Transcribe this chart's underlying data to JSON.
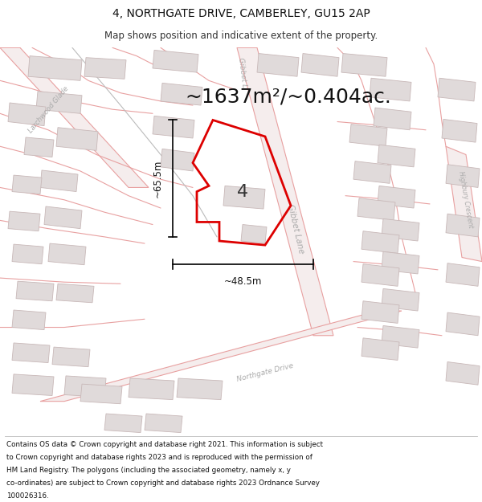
{
  "title_line1": "4, NORTHGATE DRIVE, CAMBERLEY, GU15 2AP",
  "title_line2": "Map shows position and indicative extent of the property.",
  "area_text": "~1637m²/~0.404ac.",
  "property_number": "4",
  "dim_width_label": "~48.5m",
  "dim_height_label": "~65.5m",
  "footer_lines": [
    "Contains OS data © Crown copyright and database right 2021. This information is subject",
    "to Crown copyright and database rights 2023 and is reproduced with the permission of",
    "HM Land Registry. The polygons (including the associated geometry, namely x, y",
    "co-ordinates) are subject to Crown copyright and database rights 2023 Ordnance Survey",
    "100026316."
  ],
  "map_bg": "#ffffff",
  "road_outline_color": "#e8a0a0",
  "road_fill_color": "#f5eded",
  "building_fill": "#e0dada",
  "building_edge": "#c8b8b8",
  "property_color": "#dd0000",
  "label_color": "#aaaaaa",
  "path_color": "#bbbbbb",
  "fig_width": 6.0,
  "fig_height": 6.25
}
